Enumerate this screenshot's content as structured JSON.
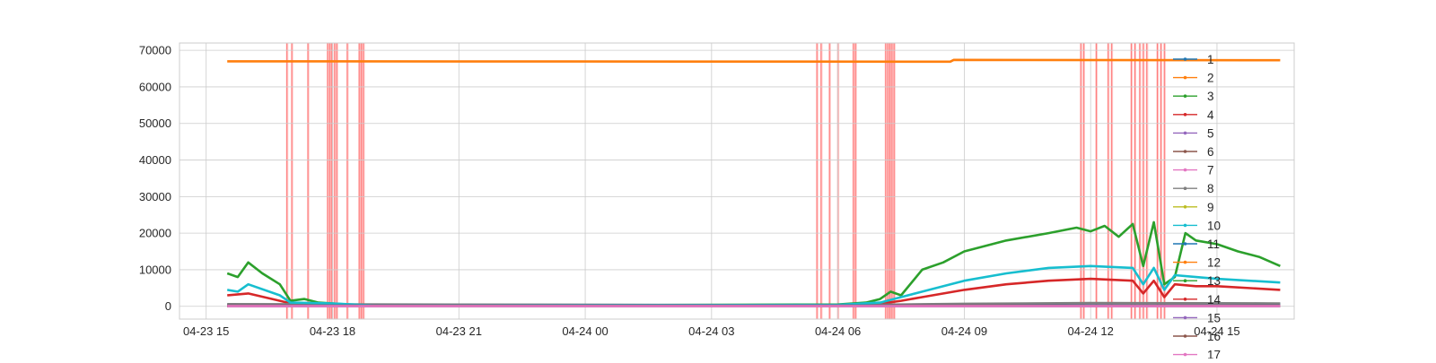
{
  "chart_data": {
    "type": "line",
    "title": "",
    "xlabel": "",
    "ylabel": "",
    "x_range": [
      "2024-04-23 14:22",
      "2024-04-24 16:50"
    ],
    "ylim": [
      -3500,
      72000
    ],
    "x_tick_labels": [
      "04-23 15",
      "04-23 18",
      "04-23 21",
      "04-24 00",
      "04-24 03",
      "04-24 06",
      "04-24 09",
      "04-24 12",
      "04-24 15"
    ],
    "y_ticks": [
      0,
      10000,
      20000,
      30000,
      40000,
      50000,
      60000,
      70000
    ],
    "grid": true,
    "legend_position": "upper right",
    "legend_entries": [
      "1",
      "2",
      "3",
      "4",
      "5",
      "6",
      "7",
      "8",
      "9",
      "10",
      "11",
      "12",
      "13",
      "14",
      "15",
      "16",
      "17"
    ],
    "highlight_color": "#ff4d4d",
    "highlighted_times": [
      "2024-04-23 16:55",
      "2024-04-23 17:02",
      "2024-04-23 17:25",
      "2024-04-23 17:53",
      "2024-04-23 17:56",
      "2024-04-23 17:59",
      "2024-04-23 18:03",
      "2024-04-23 18:06",
      "2024-04-23 18:21",
      "2024-04-23 18:38",
      "2024-04-23 18:41",
      "2024-04-23 18:44",
      "2024-04-24 05:30",
      "2024-04-24 05:36",
      "2024-04-24 05:48",
      "2024-04-24 06:00",
      "2024-04-24 06:22",
      "2024-04-24 06:25",
      "2024-04-24 07:08",
      "2024-04-24 07:11",
      "2024-04-24 07:14",
      "2024-04-24 07:17",
      "2024-04-24 07:20",
      "2024-04-24 11:46",
      "2024-04-24 11:50",
      "2024-04-24 12:08",
      "2024-04-24 12:25",
      "2024-04-24 12:30",
      "2024-04-24 12:58",
      "2024-04-24 13:03",
      "2024-04-24 13:10",
      "2024-04-24 13:15",
      "2024-04-24 13:20",
      "2024-04-24 13:35",
      "2024-04-24 13:40",
      "2024-04-24 13:45"
    ],
    "series": [
      {
        "name": "1",
        "color": "#1f77b4",
        "marker": true,
        "x": [
          "2024-04-23 15:30",
          "2024-04-23 18:00",
          "2024-04-24 06:00",
          "2024-04-24 09:00",
          "2024-04-24 12:00",
          "2024-04-24 15:00",
          "2024-04-24 16:30"
        ],
        "y": [
          400,
          300,
          200,
          500,
          800,
          800,
          700
        ]
      },
      {
        "name": "2",
        "color": "#ff7f0e",
        "marker": true,
        "x": [
          "2024-04-23 15:30",
          "2024-04-24 08:40",
          "2024-04-24 08:45",
          "2024-04-24 16:30"
        ],
        "y": [
          67000,
          66900,
          67400,
          67300
        ]
      },
      {
        "name": "3",
        "color": "#2ca02c",
        "marker": true,
        "x": [
          "2024-04-23 15:30",
          "2024-04-23 15:45",
          "2024-04-23 16:00",
          "2024-04-23 16:20",
          "2024-04-23 16:45",
          "2024-04-23 17:00",
          "2024-04-23 17:20",
          "2024-04-23 17:40",
          "2024-04-23 18:00",
          "2024-04-23 18:40",
          "2024-04-23 19:00",
          "2024-04-24 06:00",
          "2024-04-24 06:40",
          "2024-04-24 07:00",
          "2024-04-24 07:15",
          "2024-04-24 07:30",
          "2024-04-24 08:00",
          "2024-04-24 08:30",
          "2024-04-24 09:00",
          "2024-04-24 10:00",
          "2024-04-24 11:00",
          "2024-04-24 11:40",
          "2024-04-24 12:00",
          "2024-04-24 12:20",
          "2024-04-24 12:40",
          "2024-04-24 13:00",
          "2024-04-24 13:15",
          "2024-04-24 13:30",
          "2024-04-24 13:45",
          "2024-04-24 14:00",
          "2024-04-24 14:15",
          "2024-04-24 14:30",
          "2024-04-24 15:00",
          "2024-04-24 15:30",
          "2024-04-24 16:00",
          "2024-04-24 16:30"
        ],
        "y": [
          9000,
          8000,
          12000,
          9000,
          6000,
          1500,
          2000,
          1000,
          800,
          200,
          100,
          500,
          1000,
          2000,
          4000,
          3000,
          10000,
          12000,
          15000,
          18000,
          20000,
          21500,
          20500,
          22000,
          19000,
          22500,
          11000,
          23000,
          6000,
          8000,
          20000,
          18000,
          17000,
          15000,
          13500,
          11000
        ]
      },
      {
        "name": "4",
        "color": "#d62728",
        "marker": true,
        "x": [
          "2024-04-23 15:30",
          "2024-04-23 16:00",
          "2024-04-23 16:45",
          "2024-04-23 17:00",
          "2024-04-23 18:00",
          "2024-04-23 19:00",
          "2024-04-24 06:00",
          "2024-04-24 07:00",
          "2024-04-24 07:30",
          "2024-04-24 08:00",
          "2024-04-24 09:00",
          "2024-04-24 10:00",
          "2024-04-24 11:00",
          "2024-04-24 12:00",
          "2024-04-24 13:00",
          "2024-04-24 13:15",
          "2024-04-24 13:30",
          "2024-04-24 13:45",
          "2024-04-24 14:00",
          "2024-04-24 14:30",
          "2024-04-24 15:00",
          "2024-04-24 16:30"
        ],
        "y": [
          3000,
          3500,
          1500,
          800,
          500,
          100,
          300,
          700,
          1500,
          2500,
          4500,
          6000,
          7000,
          7500,
          7000,
          3500,
          7000,
          2500,
          6000,
          5500,
          5500,
          4500
        ]
      },
      {
        "name": "5",
        "color": "#9467bd",
        "marker": true,
        "x": [
          "2024-04-23 15:30",
          "2024-04-24 16:30"
        ],
        "y": [
          50,
          50
        ]
      },
      {
        "name": "6",
        "color": "#8c564b",
        "marker": true,
        "x": [
          "2024-04-23 15:30",
          "2024-04-24 16:30"
        ],
        "y": [
          100,
          100
        ]
      },
      {
        "name": "7",
        "color": "#e377c2",
        "marker": true,
        "x": [
          "2024-04-23 15:30",
          "2024-04-24 16:30"
        ],
        "y": [
          80,
          80
        ]
      },
      {
        "name": "8",
        "color": "#7f7f7f",
        "marker": true,
        "x": [
          "2024-04-23 15:30",
          "2024-04-24 06:00",
          "2024-04-24 09:00",
          "2024-04-24 12:00",
          "2024-04-24 16:30"
        ],
        "y": [
          600,
          300,
          700,
          900,
          800
        ]
      },
      {
        "name": "9",
        "color": "#bcbd22",
        "marker": true,
        "x": [
          "2024-04-23 15:30",
          "2024-04-24 16:30"
        ],
        "y": [
          0,
          0
        ]
      },
      {
        "name": "10",
        "color": "#17becf",
        "marker": true,
        "x": [
          "2024-04-23 15:30",
          "2024-04-23 15:45",
          "2024-04-23 16:00",
          "2024-04-23 16:45",
          "2024-04-23 17:00",
          "2024-04-23 18:00",
          "2024-04-23 19:00",
          "2024-04-24 06:00",
          "2024-04-24 07:00",
          "2024-04-24 07:30",
          "2024-04-24 08:00",
          "2024-04-24 09:00",
          "2024-04-24 10:00",
          "2024-04-24 11:00",
          "2024-04-24 12:00",
          "2024-04-24 13:00",
          "2024-04-24 13:15",
          "2024-04-24 13:30",
          "2024-04-24 13:45",
          "2024-04-24 14:00",
          "2024-04-24 14:30",
          "2024-04-24 15:00",
          "2024-04-24 16:30"
        ],
        "y": [
          4500,
          4000,
          6000,
          3000,
          1000,
          800,
          200,
          400,
          1000,
          2500,
          4000,
          7000,
          9000,
          10500,
          11000,
          10500,
          6000,
          10500,
          4500,
          8500,
          8000,
          7500,
          6500
        ]
      },
      {
        "name": "11",
        "color": "#1f77b4",
        "marker": true,
        "x": [
          "2024-04-23 15:30",
          "2024-04-24 16:30"
        ],
        "y": [
          150,
          150
        ]
      },
      {
        "name": "12",
        "color": "#ff7f0e",
        "marker": true,
        "x": [
          "2024-04-23 15:30",
          "2024-04-24 16:30"
        ],
        "y": [
          100,
          100
        ]
      },
      {
        "name": "13",
        "color": "#2ca02c",
        "marker": true,
        "x": [
          "2024-04-23 15:30",
          "2024-04-24 16:30"
        ],
        "y": [
          60,
          60
        ]
      },
      {
        "name": "14",
        "color": "#d62728",
        "marker": true,
        "x": [
          "2024-04-23 15:30",
          "2024-04-24 16:30"
        ],
        "y": [
          120,
          120
        ]
      },
      {
        "name": "15",
        "color": "#9467bd",
        "marker": true,
        "x": [
          "2024-04-23 15:30",
          "2024-04-24 16:30"
        ],
        "y": [
          40,
          40
        ]
      },
      {
        "name": "16",
        "color": "#8c564b",
        "marker": true,
        "x": [
          "2024-04-23 15:30",
          "2024-04-24 16:30"
        ],
        "y": [
          70,
          70
        ]
      },
      {
        "name": "17",
        "color": "#e377c2",
        "marker": true,
        "x": [
          "2024-04-23 15:30",
          "2024-04-24 16:30"
        ],
        "y": [
          30,
          30
        ]
      }
    ]
  }
}
